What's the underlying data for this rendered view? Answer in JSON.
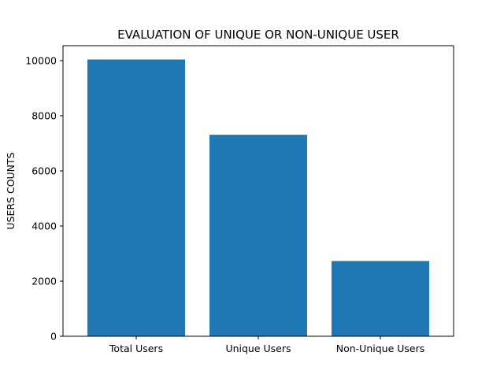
{
  "chart_data": {
    "type": "bar",
    "title": "EVALUATION OF UNIQUE OR NON-UNIQUE USER",
    "xlabel": "",
    "ylabel": "USERS COUNTS",
    "categories": [
      "Total Users",
      "Unique Users",
      "Non-Unique Users"
    ],
    "values": [
      10040,
      7310,
      2730
    ],
    "ylim": [
      0,
      10542
    ],
    "yticks": [
      0,
      2000,
      4000,
      6000,
      8000,
      10000
    ],
    "ytick_labels": [
      "0",
      "2000",
      "4000",
      "6000",
      "8000",
      "10000"
    ],
    "bar_color": "#1f77b4",
    "grid": false,
    "legend": "none"
  }
}
